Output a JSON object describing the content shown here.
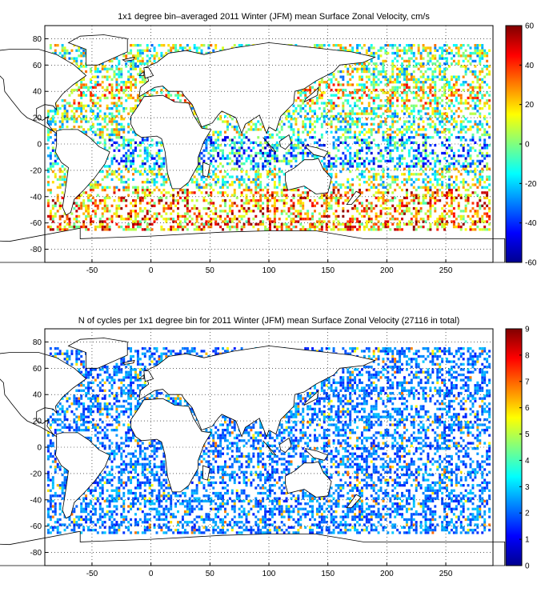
{
  "chart_data": [
    {
      "type": "heatmap",
      "title": "1x1 degree bin–averaged 2011 Winter (JFM) mean Surface Zonal Velocity, cm/s",
      "xlabel": "",
      "ylabel": "",
      "xlim": [
        -90,
        290
      ],
      "ylim": [
        -90,
        90
      ],
      "x_ticks": [
        -50,
        0,
        50,
        100,
        150,
        200,
        250
      ],
      "y_ticks": [
        80,
        60,
        40,
        20,
        0,
        -20,
        -40,
        -60,
        -80
      ],
      "colorbar": {
        "min": -60,
        "max": 60,
        "ticks": [
          60,
          40,
          20,
          0,
          -20,
          -40,
          -60
        ],
        "colormap": "jet"
      },
      "grid": true
    },
    {
      "type": "heatmap",
      "title": "N of cycles per 1x1 degree bin for 2011 Winter (JFM) mean Surface Zonal Velocity (27116 in total)",
      "xlabel": "",
      "ylabel": "",
      "xlim": [
        -90,
        290
      ],
      "ylim": [
        -90,
        90
      ],
      "x_ticks": [
        -50,
        0,
        50,
        100,
        150,
        200,
        250
      ],
      "y_ticks": [
        80,
        60,
        40,
        20,
        0,
        -20,
        -40,
        -60,
        -80
      ],
      "colorbar": {
        "min": 0,
        "max": 9,
        "ticks": [
          9,
          8,
          7,
          6,
          5,
          4,
          3,
          2,
          1,
          0
        ],
        "colormap": "jet"
      },
      "grid": true
    }
  ]
}
